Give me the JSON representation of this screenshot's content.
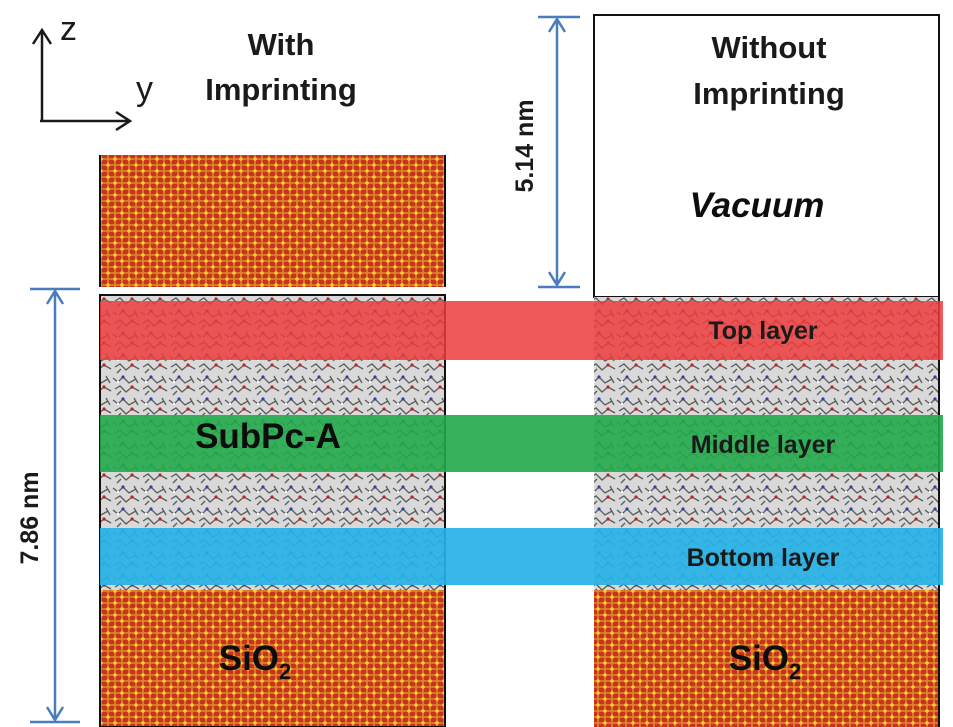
{
  "axes": {
    "z": "z",
    "y": "y"
  },
  "left_title": [
    "With",
    "Imprinting"
  ],
  "right_title": [
    "Without",
    "Imprinting"
  ],
  "vacuum_label": "Vacuum",
  "dimensions": {
    "vacuum_height": "5.14 nm",
    "film_height": "7.86 nm"
  },
  "material_label": "SubPc-A",
  "layers": [
    "Top layer",
    "Middle layer",
    "Bottom layer"
  ],
  "substrate_left": {
    "base": "SiO",
    "sub": "2"
  },
  "substrate_right": {
    "base": "SiO",
    "sub": "2"
  }
}
